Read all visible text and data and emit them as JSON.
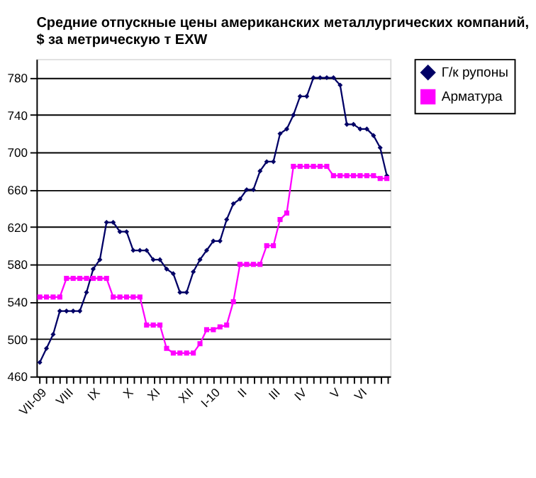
{
  "chart_data": {
    "type": "line",
    "title": [
      "Средние отпускные цены американских металлургических компаний,",
      "$ за метрическую т EXW"
    ],
    "categories": [
      "VII-09",
      null,
      null,
      null,
      "VIII",
      null,
      null,
      null,
      "IX",
      null,
      null,
      null,
      null,
      "X",
      null,
      null,
      null,
      "XI",
      null,
      null,
      null,
      null,
      "XII",
      null,
      null,
      null,
      "I-10",
      null,
      null,
      null,
      "II",
      null,
      null,
      null,
      null,
      "III",
      null,
      null,
      null,
      "IV",
      null,
      null,
      null,
      null,
      "V",
      null,
      null,
      null,
      "VI",
      null,
      null,
      null,
      null
    ],
    "series": [
      {
        "name": "Г/к рупоны",
        "color": "#000066",
        "marker": "diamond",
        "values": [
          475,
          490,
          505,
          530,
          530,
          530,
          530,
          550,
          575,
          585,
          625,
          625,
          615,
          615,
          595,
          595,
          595,
          585,
          585,
          575,
          570,
          550,
          550,
          572,
          585,
          595,
          605,
          605,
          628,
          645,
          650,
          660,
          660,
          680,
          690,
          690,
          720,
          725,
          740,
          760,
          760,
          780,
          780,
          780,
          780,
          772,
          730,
          730,
          725,
          725,
          718,
          705,
          675
        ]
      },
      {
        "name": "Арматура",
        "color": "#ff00ff",
        "marker": "square",
        "values": [
          545,
          545,
          545,
          545,
          565,
          565,
          565,
          565,
          565,
          565,
          565,
          545,
          545,
          545,
          545,
          545,
          515,
          515,
          515,
          490,
          485,
          485,
          485,
          485,
          495,
          510,
          510,
          513,
          515,
          540,
          580,
          580,
          580,
          580,
          600,
          600,
          628,
          635,
          685,
          685,
          685,
          685,
          685,
          685,
          675,
          675,
          675,
          675,
          675,
          675,
          675,
          672,
          672
        ]
      }
    ],
    "ylim": [
      460,
      800
    ],
    "yticks": [
      460,
      500,
      540,
      580,
      620,
      660,
      700,
      740,
      780
    ],
    "grid": "y",
    "legend": "right",
    "line_style": "solid"
  }
}
